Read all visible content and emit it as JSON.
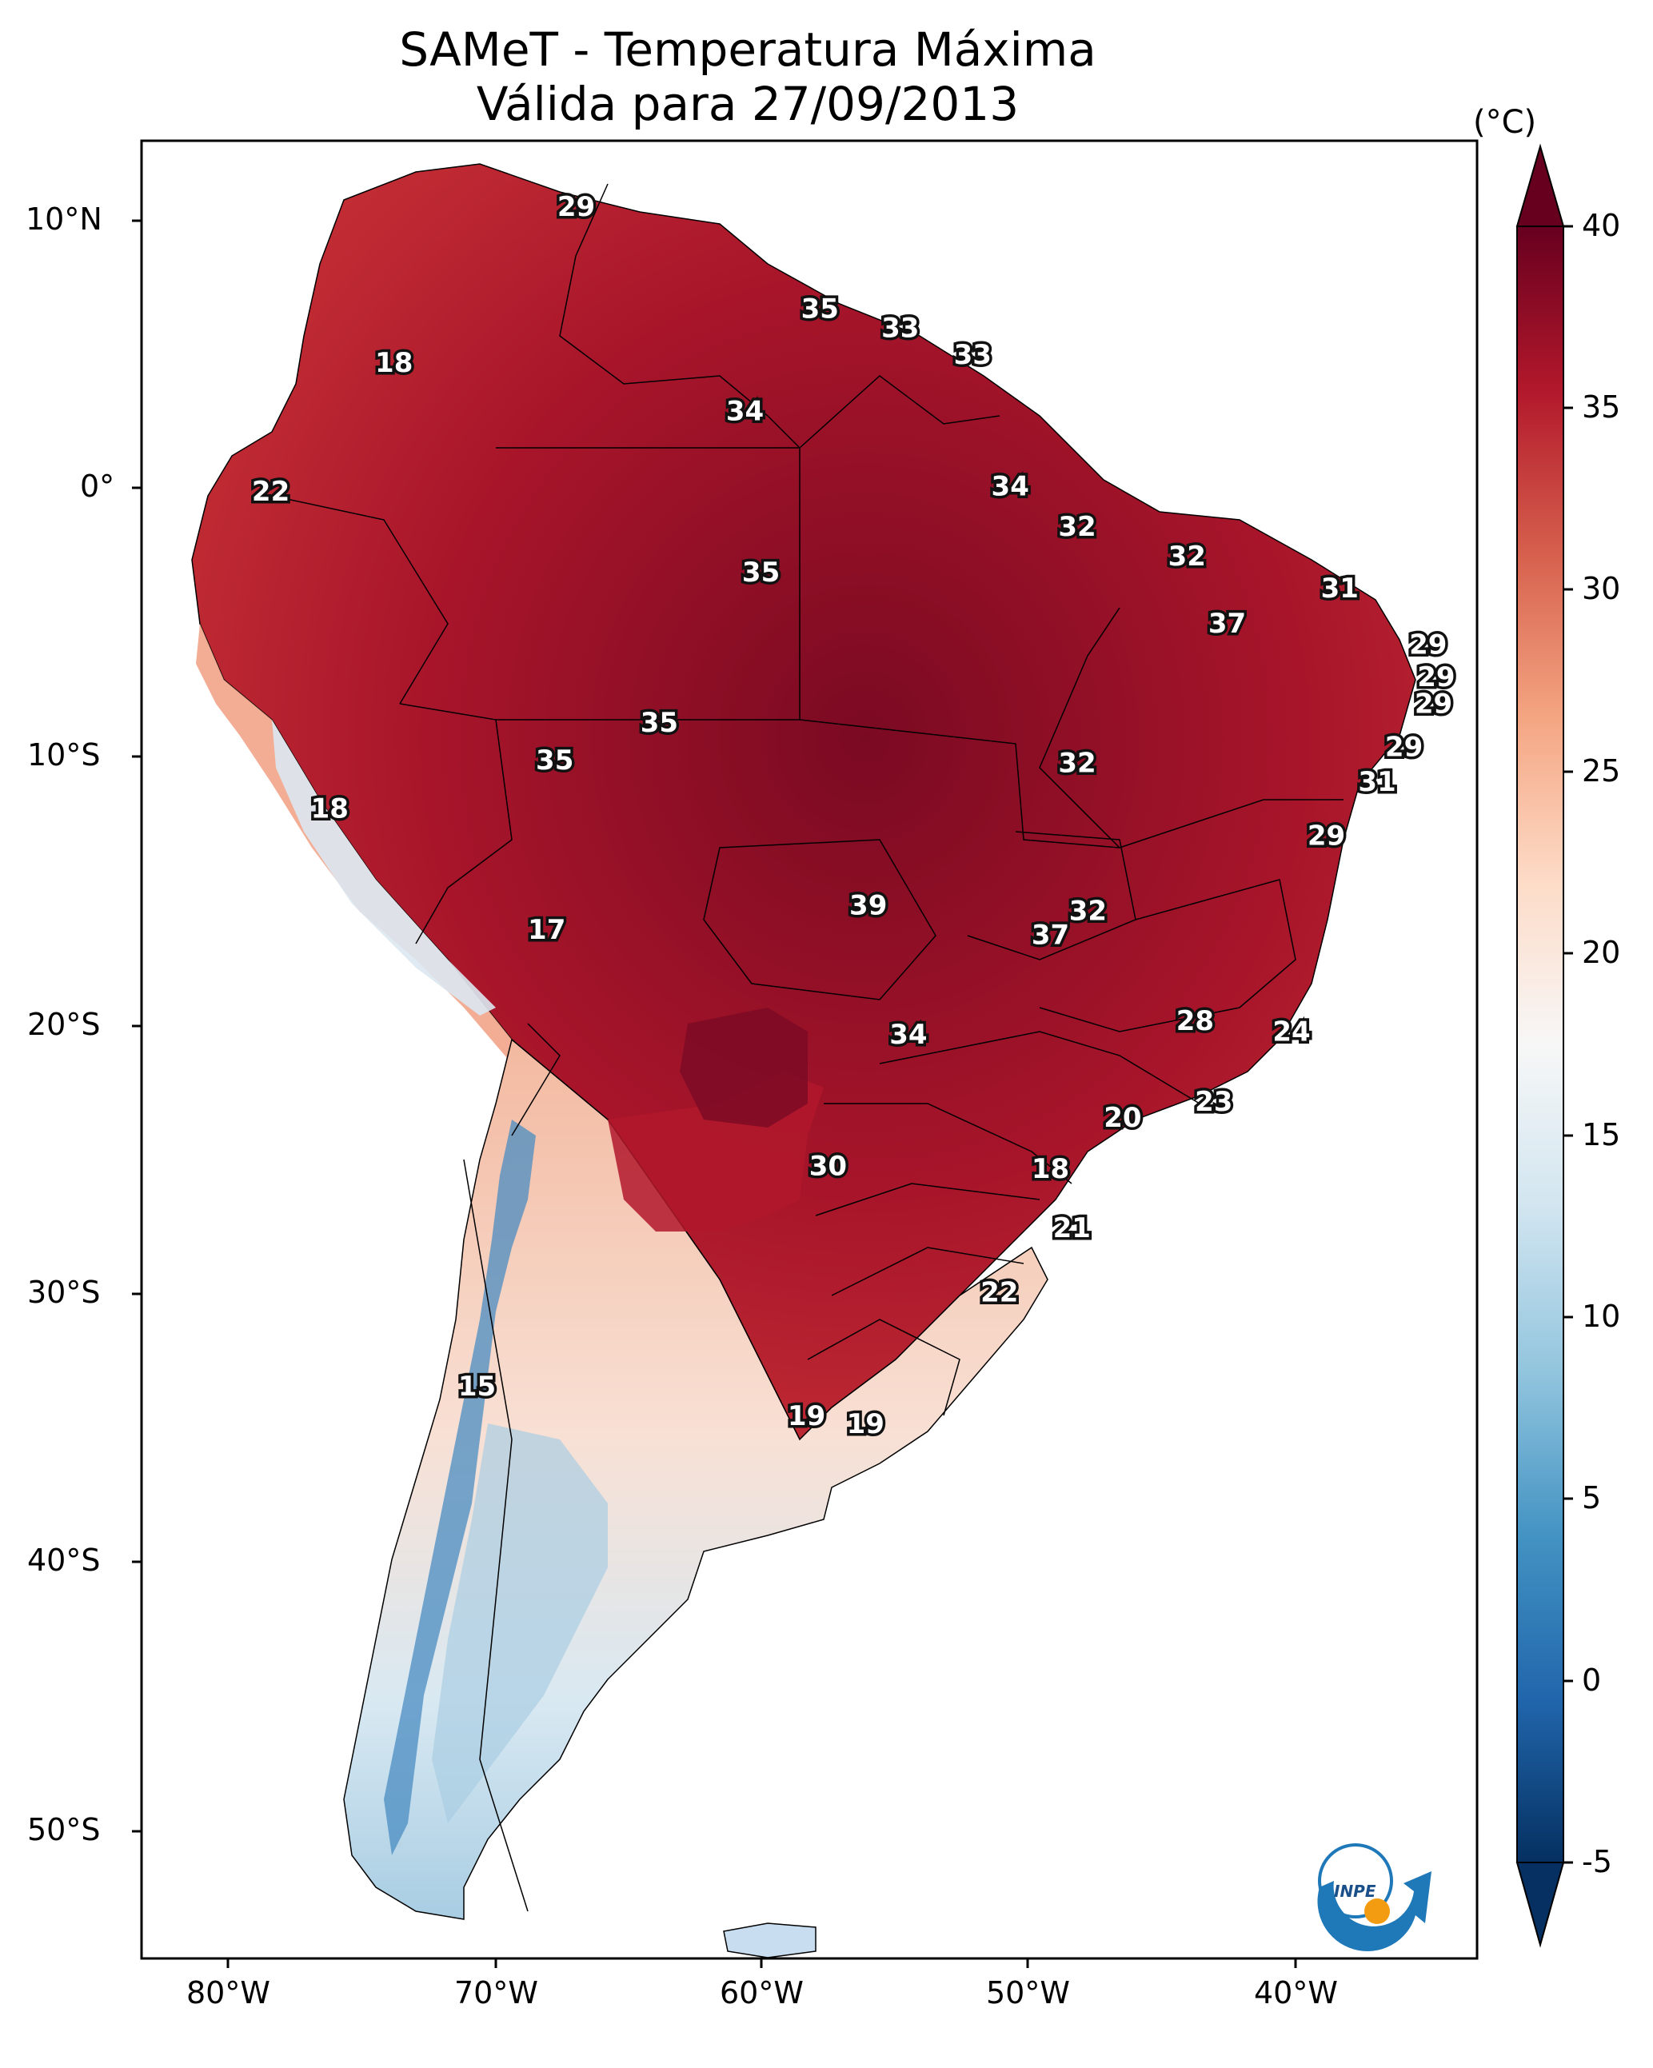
{
  "title_line1": "SAMeT - Temperatura Máxima",
  "title_line2": "Válida para 27/09/2013",
  "colorbar": {
    "unit": "(°C)",
    "ticks": [
      "40",
      "35",
      "30",
      "25",
      "20",
      "15",
      "10",
      "5",
      "0",
      "-5"
    ],
    "min": -5,
    "max": 40,
    "colormap": "RdBu_r",
    "colors": [
      "#053061",
      "#2166ac",
      "#4393c3",
      "#92c5de",
      "#d1e5f0",
      "#f7f7f7",
      "#fddbc7",
      "#f4a582",
      "#d6604d",
      "#b2182b",
      "#67001f"
    ]
  },
  "axes": {
    "lat_labels": [
      "10°N",
      "0°",
      "10°S",
      "20°S",
      "30°S",
      "40°S",
      "50°S"
    ],
    "lon_labels": [
      "80°W",
      "70°W",
      "60°W",
      "50°W",
      "40°W"
    ]
  },
  "logo": {
    "text": "INPE",
    "icon": "inpe-logo"
  },
  "station_labels": [
    {
      "value": "29",
      "lon": -67,
      "lat": 10.4
    },
    {
      "value": "35",
      "lon": -57.9,
      "lat": 6.6
    },
    {
      "value": "33",
      "lon": -54.9,
      "lat": 5.9
    },
    {
      "value": "33",
      "lon": -52.2,
      "lat": 4.9
    },
    {
      "value": "18",
      "lon": -73.8,
      "lat": 4.6
    },
    {
      "value": "34",
      "lon": -60.7,
      "lat": 2.8
    },
    {
      "value": "34",
      "lon": -50.8,
      "lat": 0.0
    },
    {
      "value": "22",
      "lon": -78.4,
      "lat": -0.2
    },
    {
      "value": "32",
      "lon": -48.3,
      "lat": -1.5
    },
    {
      "value": "32",
      "lon": -44.2,
      "lat": -2.6
    },
    {
      "value": "35",
      "lon": -60.1,
      "lat": -3.2
    },
    {
      "value": "31",
      "lon": -38.5,
      "lat": -3.8
    },
    {
      "value": "37",
      "lon": -42.7,
      "lat": -5.1
    },
    {
      "value": "29",
      "lon": -35.2,
      "lat": -5.9
    },
    {
      "value": "29",
      "lon": -34.9,
      "lat": -7.1
    },
    {
      "value": "29",
      "lon": -35.0,
      "lat": -8.1
    },
    {
      "value": "35",
      "lon": -63.9,
      "lat": -8.8
    },
    {
      "value": "29",
      "lon": -36.1,
      "lat": -9.7
    },
    {
      "value": "35",
      "lon": -67.8,
      "lat": -10.2
    },
    {
      "value": "32",
      "lon": -48.3,
      "lat": -10.3
    },
    {
      "value": "31",
      "lon": -37.1,
      "lat": -11.0
    },
    {
      "value": "18",
      "lon": -76.2,
      "lat": -12.0
    },
    {
      "value": "29",
      "lon": -39.0,
      "lat": -13.0
    },
    {
      "value": "32",
      "lon": -47.9,
      "lat": -15.8
    },
    {
      "value": "39",
      "lon": -56.1,
      "lat": -15.6
    },
    {
      "value": "17",
      "lon": -68.1,
      "lat": -16.5
    },
    {
      "value": "37",
      "lon": -49.3,
      "lat": -16.7
    },
    {
      "value": "28",
      "lon": -43.9,
      "lat": -19.9
    },
    {
      "value": "24",
      "lon": -40.3,
      "lat": -20.3
    },
    {
      "value": "34",
      "lon": -54.6,
      "lat": -20.4
    },
    {
      "value": "23",
      "lon": -43.2,
      "lat": -22.9
    },
    {
      "value": "20",
      "lon": -46.6,
      "lat": -23.5
    },
    {
      "value": "30",
      "lon": -57.6,
      "lat": -25.3
    },
    {
      "value": "18",
      "lon": -49.3,
      "lat": -25.4
    },
    {
      "value": "21",
      "lon": -48.5,
      "lat": -27.6
    },
    {
      "value": "22",
      "lon": -51.2,
      "lat": -30.0
    },
    {
      "value": "15",
      "lon": -70.7,
      "lat": -33.5
    },
    {
      "value": "19",
      "lon": -58.4,
      "lat": -34.6
    },
    {
      "value": "19",
      "lon": -56.2,
      "lat": -34.9
    }
  ]
}
